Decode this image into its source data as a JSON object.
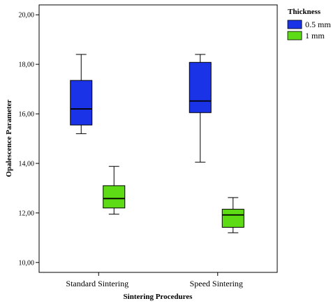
{
  "chart_data": {
    "type": "box",
    "xlabel": "Sintering Procedures",
    "ylabel": "Opalescence Parameter",
    "ylim": [
      9.6,
      20.4
    ],
    "yticks": [
      "10,00",
      "12,00",
      "14,00",
      "16,00",
      "18,00",
      "20,00"
    ],
    "ytick_values": [
      10,
      12,
      14,
      16,
      18,
      20
    ],
    "categories": [
      "Standard Sintering",
      "Speed Sintering"
    ],
    "legend": {
      "title": "Thickness",
      "placement": "right"
    },
    "grid": false,
    "series": [
      {
        "name": "0.5 mm",
        "color": "#1a33e6",
        "boxes": [
          {
            "min": 15.2,
            "q1": 15.55,
            "median": 16.2,
            "q3": 17.35,
            "max": 18.4
          },
          {
            "min": 14.05,
            "q1": 16.05,
            "median": 16.52,
            "q3": 18.08,
            "max": 18.4
          }
        ]
      },
      {
        "name": "1 mm",
        "color": "#5ddc16",
        "boxes": [
          {
            "min": 11.95,
            "q1": 12.2,
            "median": 12.58,
            "q3": 13.1,
            "max": 13.88
          },
          {
            "min": 11.2,
            "q1": 11.42,
            "median": 11.92,
            "q3": 12.15,
            "max": 12.62
          }
        ]
      }
    ]
  }
}
